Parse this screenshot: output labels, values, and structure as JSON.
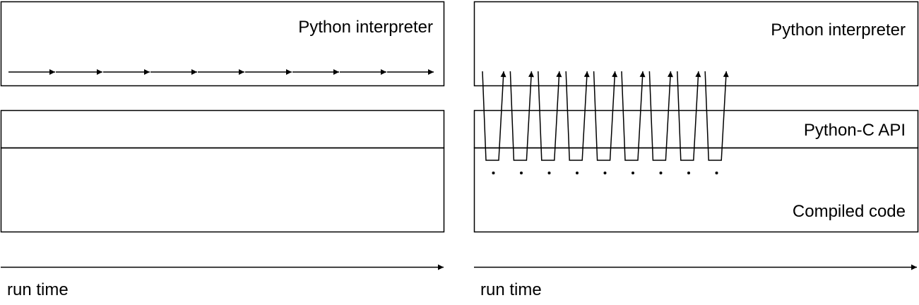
{
  "left_panel": {
    "interpreter_label": "Python interpreter",
    "time_label": "run time"
  },
  "right_panel": {
    "interpreter_label": "Python interpreter",
    "capi_label": "Python-C API",
    "compiled_label": "Compiled code",
    "time_label": "run time"
  }
}
